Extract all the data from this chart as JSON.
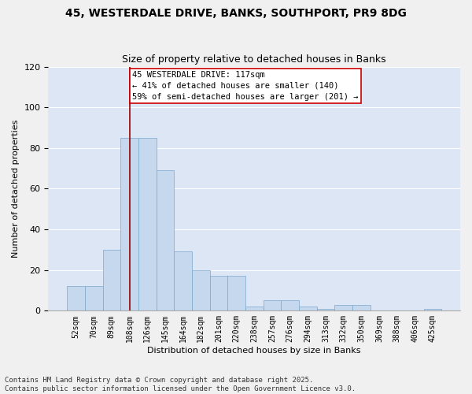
{
  "title_line1": "45, WESTERDALE DRIVE, BANKS, SOUTHPORT, PR9 8DG",
  "title_line2": "Size of property relative to detached houses in Banks",
  "xlabel": "Distribution of detached houses by size in Banks",
  "ylabel": "Number of detached properties",
  "bins": [
    "52sqm",
    "70sqm",
    "89sqm",
    "108sqm",
    "126sqm",
    "145sqm",
    "164sqm",
    "182sqm",
    "201sqm",
    "220sqm",
    "238sqm",
    "257sqm",
    "276sqm",
    "294sqm",
    "313sqm",
    "332sqm",
    "350sqm",
    "369sqm",
    "388sqm",
    "406sqm",
    "425sqm"
  ],
  "values": [
    12,
    12,
    30,
    85,
    85,
    69,
    29,
    20,
    17,
    17,
    2,
    5,
    5,
    2,
    1,
    3,
    3,
    0,
    0,
    0,
    1
  ],
  "bar_color": "#c5d8ee",
  "bar_edge_color": "#7aa8cc",
  "property_bin_index": 3,
  "vline_color": "#990000",
  "annotation_text": "45 WESTERDALE DRIVE: 117sqm\n← 41% of detached houses are smaller (140)\n59% of semi-detached houses are larger (201) →",
  "annotation_box_color": "#ffffff",
  "annotation_box_edge": "#cc0000",
  "ylim": [
    0,
    120
  ],
  "yticks": [
    0,
    20,
    40,
    60,
    80,
    100,
    120
  ],
  "plot_bg_color": "#dce6f5",
  "fig_bg_color": "#f0f0f0",
  "grid_color": "#ffffff",
  "footer_line1": "Contains HM Land Registry data © Crown copyright and database right 2025.",
  "footer_line2": "Contains public sector information licensed under the Open Government Licence v3.0.",
  "title_fontsize": 10,
  "subtitle_fontsize": 9,
  "annotation_fontsize": 7.5,
  "footer_fontsize": 6.5,
  "axis_label_fontsize": 8,
  "tick_fontsize": 7
}
